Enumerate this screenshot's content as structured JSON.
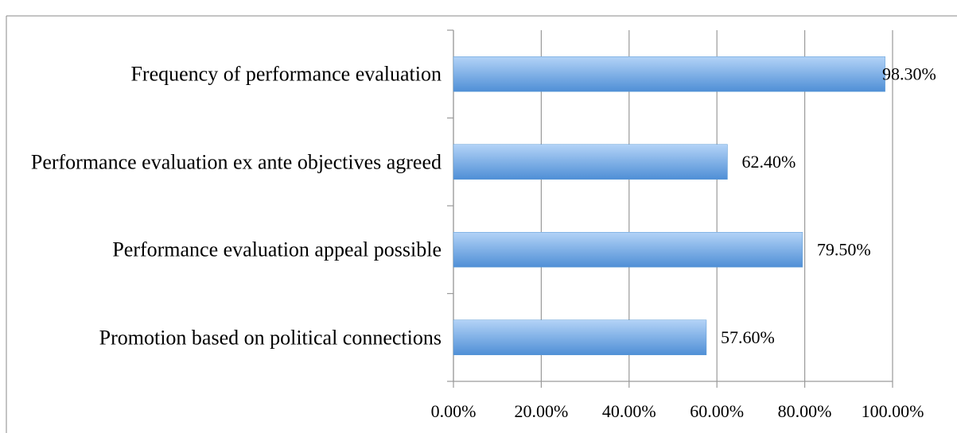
{
  "chart_data": {
    "type": "bar",
    "orientation": "horizontal",
    "categories": [
      "Frequency of performance evaluation",
      "Performance evaluation ex ante objectives agreed",
      "Performance evaluation appeal possible",
      "Promotion based on political connections"
    ],
    "values": [
      98.3,
      62.4,
      79.5,
      57.6
    ],
    "value_labels": [
      "98.30%",
      "62.40%",
      "79.50%",
      "57.60%"
    ],
    "color": "#5b9bd5",
    "xlim": [
      0,
      100
    ],
    "xticks": [
      {
        "value": 0,
        "label": "0.00%"
      },
      {
        "value": 20,
        "label": "20.00%"
      },
      {
        "value": 40,
        "label": "40.00%"
      },
      {
        "value": 60,
        "label": "60.00%"
      },
      {
        "value": 80,
        "label": "80.00%"
      },
      {
        "value": 100,
        "label": "100.00%"
      }
    ],
    "grid": true
  }
}
